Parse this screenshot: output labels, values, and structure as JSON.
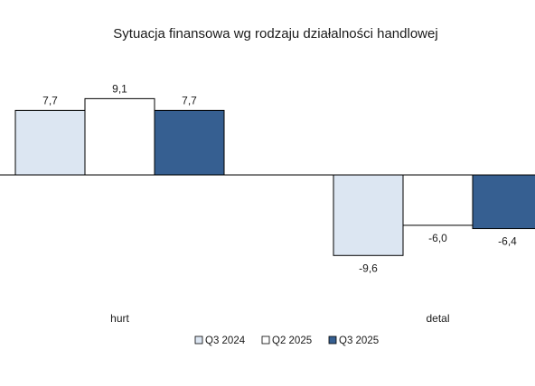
{
  "chart_data": {
    "type": "bar",
    "title": "Sytuacja finansowa wg rodzaju działalności handlowej",
    "categories": [
      "hurt",
      "detal"
    ],
    "series": [
      {
        "name": "Q3 2024",
        "values": [
          7.7,
          -9.6
        ],
        "labels": [
          "7,7",
          "-9,6"
        ],
        "color": "#dce6f2"
      },
      {
        "name": "Q2 2025",
        "values": [
          9.1,
          -6.0
        ],
        "labels": [
          "9,1",
          "-6,0"
        ],
        "color": "#ffffff"
      },
      {
        "name": "Q3 2025",
        "values": [
          7.7,
          -6.4
        ],
        "labels": [
          "7,7",
          "-6,4"
        ],
        "color": "#365f91"
      }
    ],
    "ylim": [
      -10,
      10
    ],
    "grid": false,
    "legend_position": "bottom"
  }
}
